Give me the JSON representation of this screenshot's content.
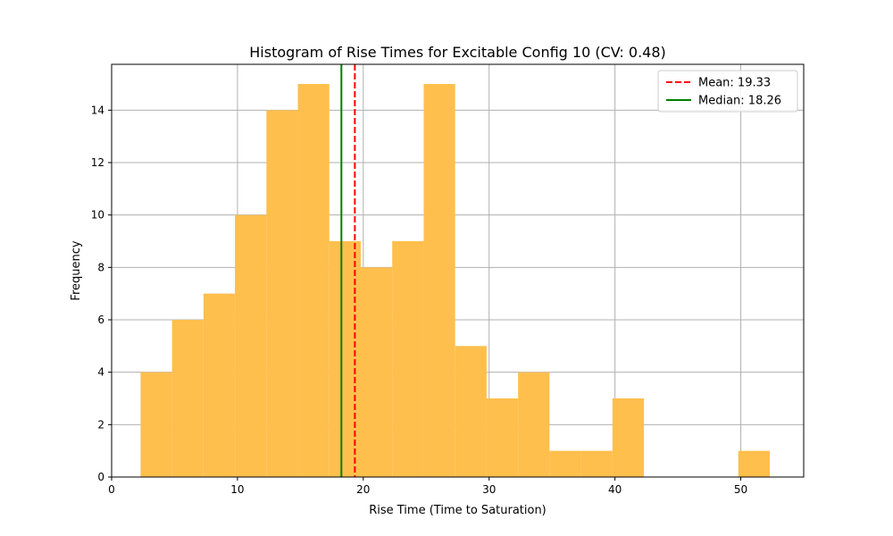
{
  "chart_data": {
    "type": "bar",
    "title": "Histogram of Rise Times for Excitable Config 10 (CV: 0.48)",
    "xlabel": "Rise Time (Time to Saturation)",
    "ylabel": "Frequency",
    "xlim": [
      0,
      55
    ],
    "ylim": [
      0,
      15.75
    ],
    "xticks": [
      0,
      10,
      20,
      30,
      40,
      50
    ],
    "yticks": [
      0,
      2,
      4,
      6,
      8,
      10,
      12,
      14
    ],
    "grid": true,
    "legend_position": "top-right",
    "bar_color": "#FFBF4D",
    "bins": [
      {
        "x0": 2.3,
        "x1": 4.8,
        "count": 4
      },
      {
        "x0": 4.8,
        "x1": 7.3,
        "count": 6
      },
      {
        "x0": 7.3,
        "x1": 9.8,
        "count": 7
      },
      {
        "x0": 9.8,
        "x1": 12.3,
        "count": 10
      },
      {
        "x0": 12.3,
        "x1": 14.8,
        "count": 14
      },
      {
        "x0": 14.8,
        "x1": 17.3,
        "count": 15
      },
      {
        "x0": 17.3,
        "x1": 19.8,
        "count": 9
      },
      {
        "x0": 19.8,
        "x1": 22.3,
        "count": 8
      },
      {
        "x0": 22.3,
        "x1": 24.8,
        "count": 9
      },
      {
        "x0": 24.8,
        "x1": 27.3,
        "count": 15
      },
      {
        "x0": 27.3,
        "x1": 29.8,
        "count": 5
      },
      {
        "x0": 29.8,
        "x1": 32.3,
        "count": 3
      },
      {
        "x0": 32.3,
        "x1": 34.8,
        "count": 4
      },
      {
        "x0": 34.8,
        "x1": 37.3,
        "count": 1
      },
      {
        "x0": 37.3,
        "x1": 39.8,
        "count": 1
      },
      {
        "x0": 39.8,
        "x1": 42.3,
        "count": 3
      },
      {
        "x0": 42.3,
        "x1": 44.8,
        "count": 0
      },
      {
        "x0": 44.8,
        "x1": 47.3,
        "count": 0
      },
      {
        "x0": 47.3,
        "x1": 49.8,
        "count": 0
      },
      {
        "x0": 49.8,
        "x1": 52.3,
        "count": 1
      }
    ],
    "reference_lines": [
      {
        "label": "Mean: 19.33",
        "value": 19.33,
        "color": "#FF0000",
        "style": "dashed"
      },
      {
        "label": "Median: 18.26",
        "value": 18.26,
        "color": "#008000",
        "style": "solid"
      }
    ]
  }
}
